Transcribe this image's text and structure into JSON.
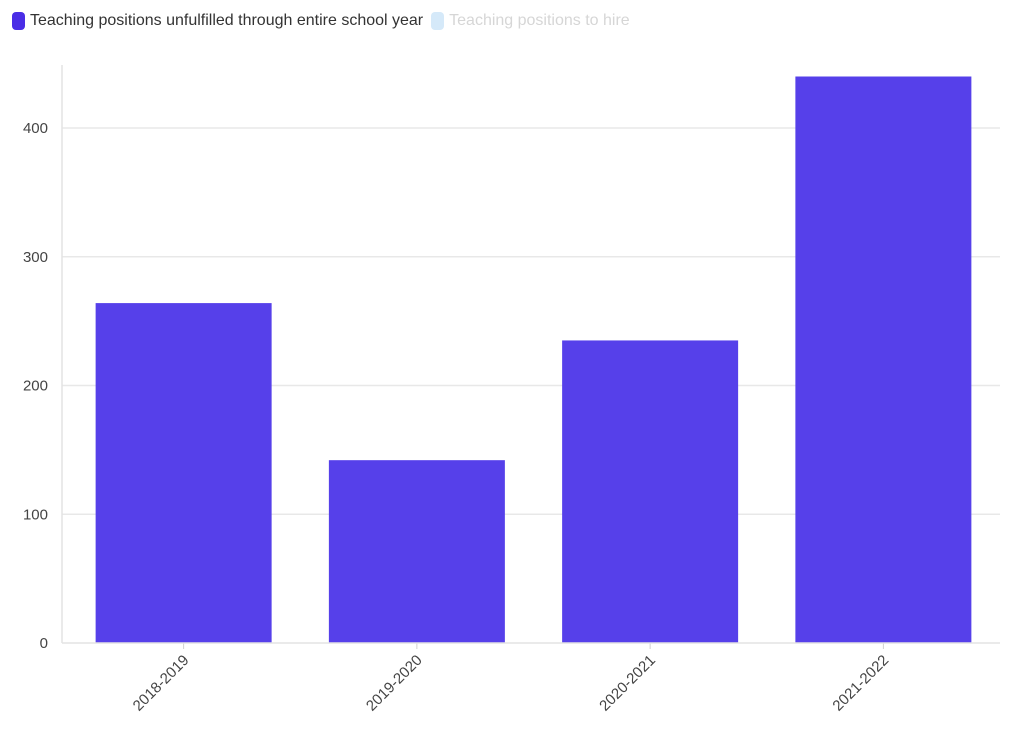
{
  "legend": {
    "items": [
      {
        "label": "Teaching positions unfulfilled through entire school year",
        "color": "#4a2de6",
        "active": true
      },
      {
        "label": "Teaching positions to hire",
        "color": "#d5e9f9",
        "active": false
      }
    ]
  },
  "chart_data": {
    "type": "bar",
    "categories": [
      "2018-2019",
      "2019-2020",
      "2020-2021",
      "2021-2022"
    ],
    "series": [
      {
        "name": "Teaching positions unfulfilled through entire school year",
        "values": [
          264,
          142,
          235,
          440
        ],
        "color": "#5640ea"
      }
    ],
    "yticks": [
      0,
      100,
      200,
      300,
      400
    ],
    "ylim": [
      0,
      450
    ],
    "grid": true,
    "legend_position": "top-left",
    "title": "",
    "xlabel": "",
    "ylabel": ""
  }
}
